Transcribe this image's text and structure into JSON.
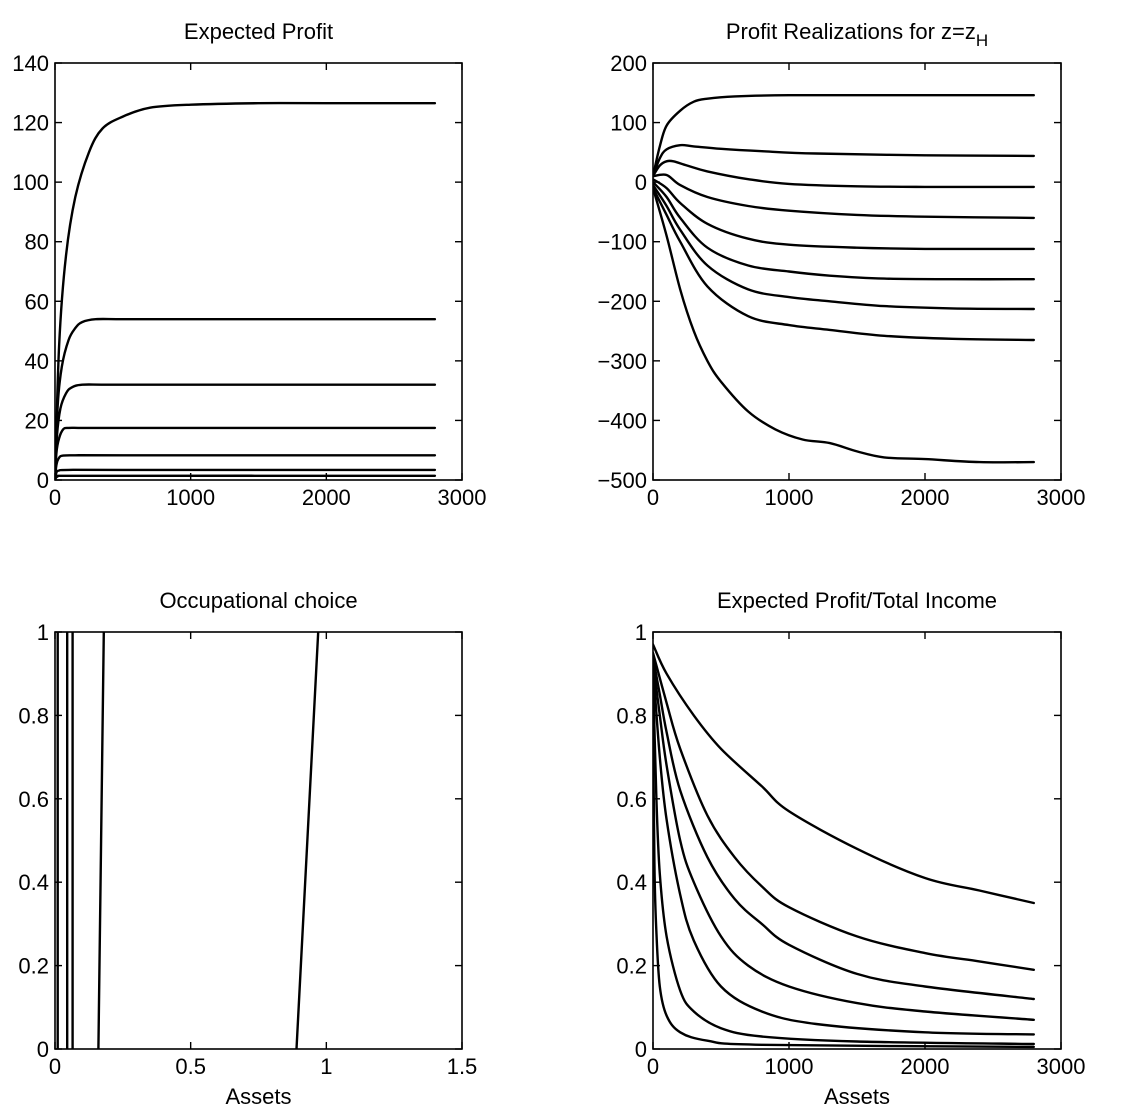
{
  "chart_data": [
    {
      "type": "line",
      "title": "Expected Profit",
      "xlabel": "",
      "ylabel": "",
      "xlim": [
        0,
        3000
      ],
      "ylim": [
        0,
        140
      ],
      "xticks": [
        0,
        1000,
        2000,
        3000
      ],
      "yticks": [
        0,
        20,
        40,
        60,
        80,
        100,
        120,
        140
      ],
      "grid": false,
      "series": [
        {
          "x": [
            0,
            30,
            80,
            150,
            250,
            350,
            500,
            700,
            1000,
            1500,
            2000,
            2800
          ],
          "y": [
            0,
            45,
            75,
            95,
            110,
            118,
            122,
            125,
            126,
            126.5,
            126.5,
            126.5
          ]
        },
        {
          "x": [
            0,
            20,
            50,
            100,
            150,
            200,
            300,
            500,
            1000,
            2000,
            2800
          ],
          "y": [
            0,
            25,
            38,
            47,
            51,
            53,
            54,
            54,
            54,
            54,
            54
          ]
        },
        {
          "x": [
            0,
            15,
            40,
            80,
            120,
            200,
            400,
            1000,
            2800
          ],
          "y": [
            0,
            15,
            24,
            29,
            31,
            32,
            32,
            32,
            32
          ]
        },
        {
          "x": [
            0,
            10,
            30,
            60,
            100,
            200,
            500,
            2800
          ],
          "y": [
            0,
            9,
            14,
            17,
            17.5,
            17.5,
            17.5,
            17.5
          ]
        },
        {
          "x": [
            0,
            10,
            30,
            60,
            150,
            500,
            2800
          ],
          "y": [
            0,
            5,
            7.5,
            8.2,
            8.3,
            8.3,
            8.3
          ]
        },
        {
          "x": [
            0,
            10,
            30,
            100,
            500,
            2800
          ],
          "y": [
            0,
            2.5,
            3.2,
            3.4,
            3.4,
            3.4
          ]
        },
        {
          "x": [
            0,
            20,
            100,
            2800
          ],
          "y": [
            0,
            1.2,
            1.4,
            1.4
          ]
        }
      ]
    },
    {
      "type": "line",
      "title": "Profit Realizations for  z=z",
      "title_sub": "H",
      "xlabel": "",
      "ylabel": "",
      "xlim": [
        0,
        3000
      ],
      "ylim": [
        -500,
        200
      ],
      "xticks": [
        0,
        1000,
        2000,
        3000
      ],
      "yticks": [
        -500,
        -400,
        -300,
        -200,
        -100,
        0,
        100,
        200
      ],
      "grid": false,
      "series": [
        {
          "x": [
            0,
            50,
            100,
            200,
            300,
            400,
            600,
            1000,
            2000,
            2800
          ],
          "y": [
            10,
            60,
            95,
            120,
            135,
            140,
            144,
            146,
            146,
            146
          ]
        },
        {
          "x": [
            0,
            50,
            100,
            200,
            300,
            500,
            800,
            1200,
            2000,
            2800
          ],
          "y": [
            10,
            40,
            55,
            62,
            60,
            56,
            52,
            48,
            45,
            44
          ]
        },
        {
          "x": [
            0,
            50,
            100,
            150,
            250,
            400,
            700,
            1000,
            1500,
            2000,
            2800
          ],
          "y": [
            10,
            28,
            35,
            35,
            28,
            18,
            5,
            -3,
            -7,
            -8,
            -8
          ]
        },
        {
          "x": [
            0,
            100,
            200,
            400,
            700,
            1000,
            1500,
            2000,
            2800
          ],
          "y": [
            10,
            12,
            -5,
            -25,
            -40,
            -48,
            -55,
            -58,
            -60
          ]
        },
        {
          "x": [
            0,
            100,
            200,
            400,
            700,
            1000,
            1500,
            2000,
            2800
          ],
          "y": [
            5,
            -10,
            -35,
            -70,
            -95,
            -105,
            -110,
            -112,
            -112
          ]
        },
        {
          "x": [
            0,
            100,
            200,
            400,
            700,
            1000,
            1300,
            1700,
            2200,
            2800
          ],
          "y": [
            0,
            -25,
            -60,
            -110,
            -140,
            -150,
            -157,
            -162,
            -163,
            -163
          ]
        },
        {
          "x": [
            0,
            100,
            200,
            400,
            700,
            1000,
            1300,
            1700,
            2200,
            2800
          ],
          "y": [
            -5,
            -40,
            -80,
            -140,
            -180,
            -193,
            -200,
            -208,
            -212,
            -213
          ]
        },
        {
          "x": [
            0,
            100,
            200,
            400,
            700,
            1000,
            1300,
            1700,
            2200,
            2800
          ],
          "y": [
            -10,
            -55,
            -100,
            -175,
            -225,
            -240,
            -248,
            -258,
            -263,
            -265
          ]
        },
        {
          "x": [
            0,
            100,
            200,
            300,
            400,
            500,
            700,
            900,
            1100,
            1300,
            1500,
            1700,
            2000,
            2400,
            2800
          ],
          "y": [
            -10,
            -90,
            -180,
            -250,
            -300,
            -335,
            -385,
            -415,
            -432,
            -438,
            -452,
            -462,
            -465,
            -470,
            -470
          ]
        }
      ]
    },
    {
      "type": "line",
      "title": "Occupational choice",
      "xlabel": "Assets",
      "ylabel": "",
      "xlim": [
        0,
        1.5
      ],
      "ylim": [
        0,
        1
      ],
      "xticks": [
        0,
        0.5,
        1,
        1.5
      ],
      "xticklabels": [
        "0",
        "0.5",
        "1",
        "1.5"
      ],
      "yticks": [
        0,
        0.2,
        0.4,
        0.6,
        0.8,
        1
      ],
      "yticklabels": [
        "0",
        "0.2",
        "0.4",
        "0.6",
        "0.8",
        "1"
      ],
      "grid": false,
      "series": [
        {
          "x": [
            0.01,
            0.01
          ],
          "y": [
            0,
            1
          ]
        },
        {
          "x": [
            0.045,
            0.045
          ],
          "y": [
            0,
            1
          ]
        },
        {
          "x": [
            0.065,
            0.065
          ],
          "y": [
            0,
            1
          ]
        },
        {
          "x": [
            0.16,
            0.18
          ],
          "y": [
            0,
            1
          ]
        },
        {
          "x": [
            0.89,
            0.97
          ],
          "y": [
            0,
            1
          ]
        }
      ]
    },
    {
      "type": "line",
      "title": "Expected Profit/Total Income",
      "xlabel": "Assets",
      "ylabel": "",
      "xlim": [
        0,
        3000
      ],
      "ylim": [
        0,
        1
      ],
      "xticks": [
        0,
        1000,
        2000,
        3000
      ],
      "yticks": [
        0,
        0.2,
        0.4,
        0.6,
        0.8,
        1
      ],
      "yticklabels": [
        "0",
        "0.2",
        "0.4",
        "0.6",
        "0.8",
        "1"
      ],
      "grid": false,
      "series": [
        {
          "x": [
            0,
            100,
            300,
            500,
            800,
            1000,
            1500,
            2000,
            2400,
            2800
          ],
          "y": [
            0.97,
            0.9,
            0.8,
            0.72,
            0.63,
            0.57,
            0.48,
            0.41,
            0.38,
            0.35
          ]
        },
        {
          "x": [
            0,
            100,
            200,
            400,
            600,
            800,
            1000,
            1500,
            2000,
            2400,
            2800
          ],
          "y": [
            0.95,
            0.83,
            0.72,
            0.56,
            0.46,
            0.39,
            0.34,
            0.27,
            0.23,
            0.21,
            0.19
          ]
        },
        {
          "x": [
            0,
            50,
            100,
            200,
            400,
            600,
            800,
            1000,
            1500,
            2000,
            2800
          ],
          "y": [
            0.94,
            0.85,
            0.76,
            0.62,
            0.46,
            0.36,
            0.3,
            0.25,
            0.18,
            0.15,
            0.12
          ]
        },
        {
          "x": [
            0,
            50,
            100,
            200,
            300,
            500,
            700,
            1000,
            1500,
            2000,
            2800
          ],
          "y": [
            0.93,
            0.8,
            0.68,
            0.5,
            0.4,
            0.27,
            0.2,
            0.15,
            0.11,
            0.09,
            0.07
          ]
        },
        {
          "x": [
            0,
            50,
            100,
            200,
            300,
            500,
            800,
            1200,
            2000,
            2800
          ],
          "y": [
            0.92,
            0.7,
            0.55,
            0.37,
            0.26,
            0.15,
            0.09,
            0.06,
            0.04,
            0.035
          ]
        },
        {
          "x": [
            0,
            25,
            50,
            100,
            200,
            300,
            500,
            800,
            1500,
            2800
          ],
          "y": [
            0.9,
            0.6,
            0.42,
            0.27,
            0.14,
            0.09,
            0.05,
            0.03,
            0.018,
            0.012
          ]
        },
        {
          "x": [
            0,
            10,
            25,
            50,
            100,
            200,
            400,
            800,
            2800
          ],
          "y": [
            0.85,
            0.45,
            0.28,
            0.15,
            0.08,
            0.04,
            0.02,
            0.01,
            0.005
          ]
        }
      ]
    }
  ]
}
